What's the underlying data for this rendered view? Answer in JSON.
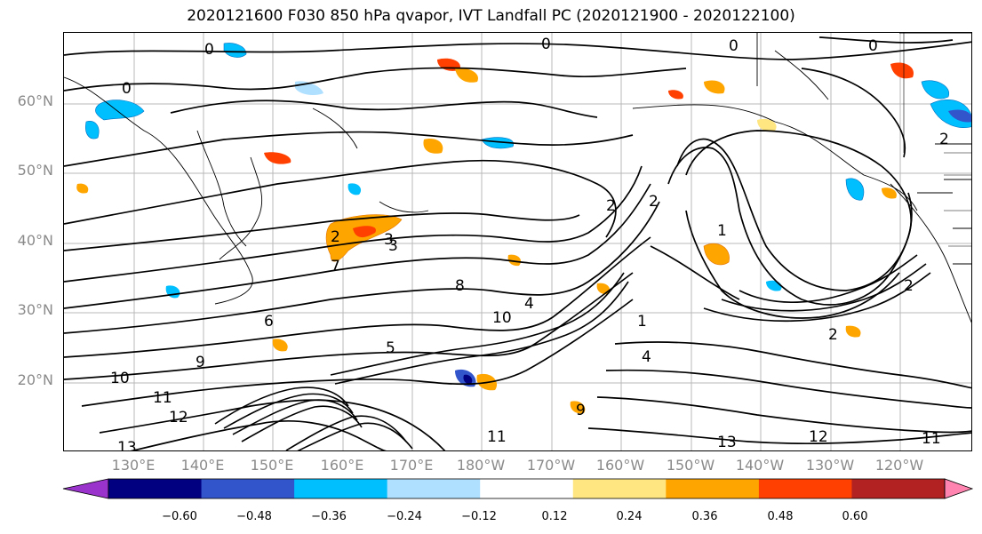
{
  "title": "2020121600 F030 850 hPa qvapor, IVT Landfall PC (2020121900 - 2020122100)",
  "lat_labels": [
    "60°N",
    "50°N",
    "40°N",
    "30°N",
    "20°N"
  ],
  "lon_labels": [
    "130°E",
    "140°E",
    "150°E",
    "160°E",
    "170°E",
    "180°W",
    "170°W",
    "160°W",
    "150°W",
    "140°W",
    "130°W",
    "120°W"
  ],
  "colorbar": {
    "colors": [
      "#9933cc",
      "#000080",
      "#3355cc",
      "#00bfff",
      "#b0e0ff",
      "#ffffff",
      "#ffe680",
      "#ffa500",
      "#ff4000",
      "#b22222",
      "#ff85b0"
    ],
    "tick_labels": [
      "−0.60",
      "−0.48",
      "−0.36",
      "−0.24",
      "−0.12",
      "0.12",
      "0.24",
      "0.36",
      "0.48",
      "0.60"
    ]
  },
  "contour_labels": [
    "0",
    "0",
    "0",
    "0",
    "0",
    "2",
    "2",
    "3",
    "3",
    "4",
    "5",
    "6",
    "7",
    "8",
    "9",
    "9",
    "10",
    "10",
    "11",
    "11",
    "12",
    "13",
    "13",
    "12",
    "11",
    "2",
    "1",
    "2",
    "1",
    "2",
    "4",
    "2"
  ]
}
